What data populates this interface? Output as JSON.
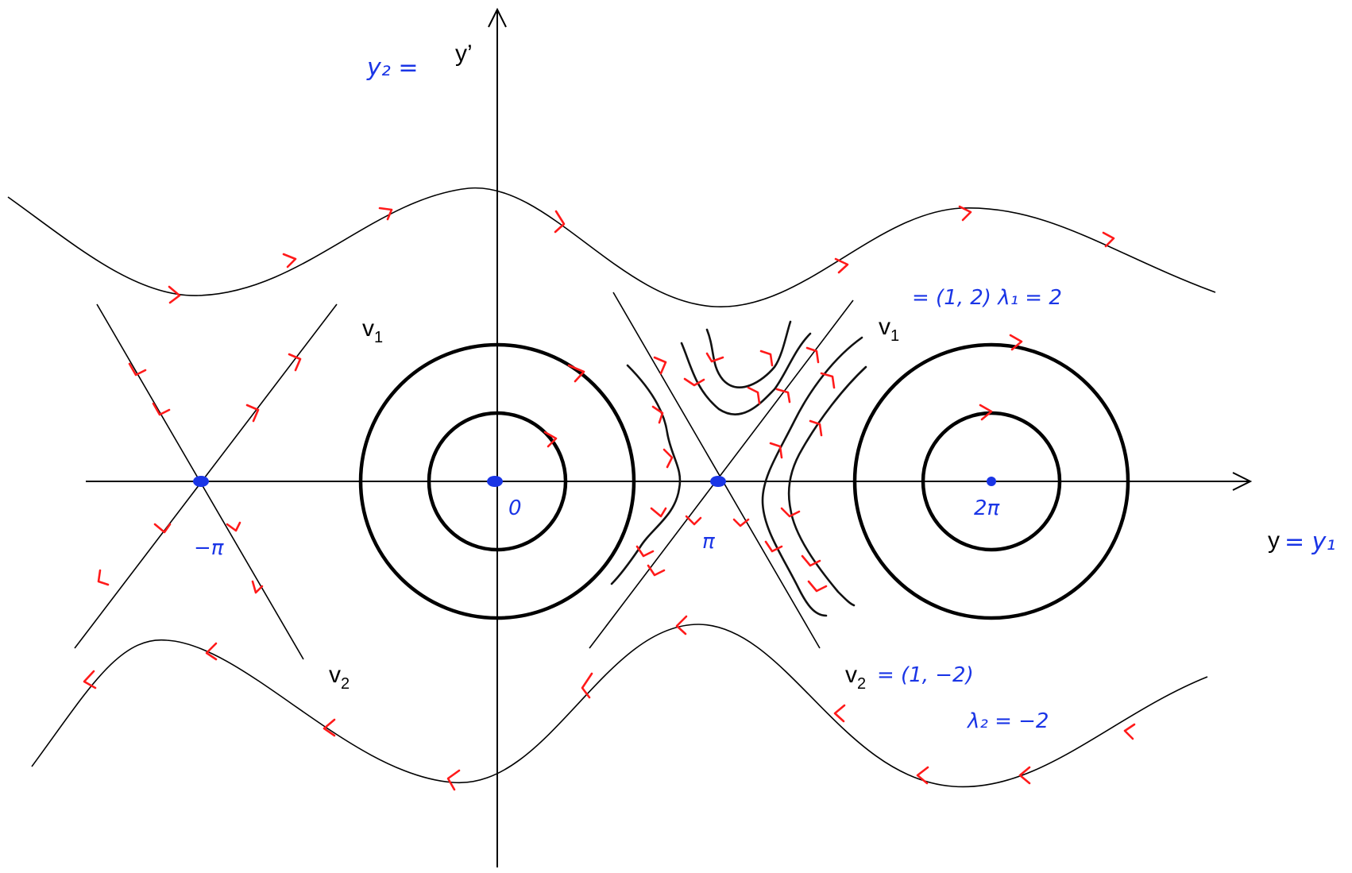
{
  "diagram": {
    "colors": {
      "trajectory": "#000000",
      "direction_arrow": "#ff1a1a",
      "handwriting": "#1a35e6"
    },
    "axes": {
      "vertical_label": "y’",
      "vertical_handwritten": "y₂ =",
      "horizontal_label": "y",
      "horizontal_handwritten": "= y₁"
    },
    "equilibria": {
      "neg_pi": "−π",
      "zero": "0",
      "pi": "π",
      "two_pi": "2π"
    },
    "eigen": {
      "v1_left": "v",
      "v1_left_sub": "1",
      "v2_left": "v",
      "v2_left_sub": "2",
      "v1_right": "v",
      "v1_right_sub": "1",
      "v1_right_note": "= (1, 2)   λ₁ = 2",
      "v2_right": "v",
      "v2_right_sub": "2",
      "v2_right_note": "= (1, −2)",
      "lambda2_note": "λ₂ = −2"
    }
  }
}
